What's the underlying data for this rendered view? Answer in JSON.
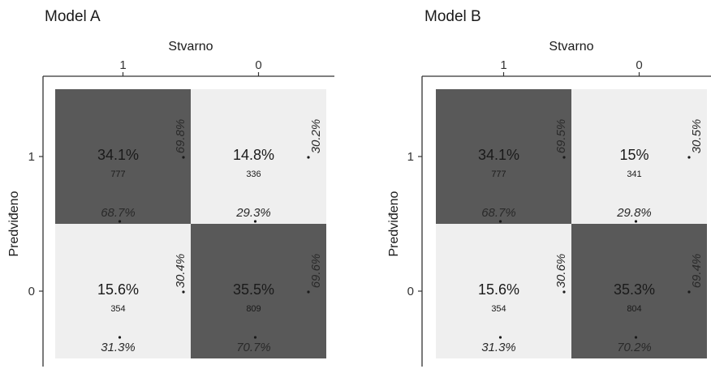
{
  "colors": {
    "dark": "#595959",
    "light": "#efefef",
    "text": "#1a1a1a",
    "axis": "#333333"
  },
  "chart_data": [
    {
      "type": "heatmap",
      "title": "Model A",
      "xlabel": "Stvarno",
      "ylabel": "Predviđeno",
      "x_categories": [
        "1",
        "0"
      ],
      "y_categories": [
        "1",
        "0"
      ],
      "cells": [
        {
          "row": "1",
          "col": "1",
          "percent": "34.1%",
          "count": "777",
          "shade": "dark",
          "col_share": "68.7%",
          "row_share": "69.8%"
        },
        {
          "row": "1",
          "col": "0",
          "percent": "14.8%",
          "count": "336",
          "shade": "light",
          "col_share": "29.3%",
          "row_share": "30.2%"
        },
        {
          "row": "0",
          "col": "1",
          "percent": "15.6%",
          "count": "354",
          "shade": "light",
          "col_share": "31.3%",
          "row_share": "30.4%"
        },
        {
          "row": "0",
          "col": "0",
          "percent": "35.5%",
          "count": "809",
          "shade": "dark",
          "col_share": "70.7%",
          "row_share": "69.6%"
        }
      ]
    },
    {
      "type": "heatmap",
      "title": "Model B",
      "xlabel": "Stvarno",
      "ylabel": "Predviđeno",
      "x_categories": [
        "1",
        "0"
      ],
      "y_categories": [
        "1",
        "0"
      ],
      "cells": [
        {
          "row": "1",
          "col": "1",
          "percent": "34.1%",
          "count": "777",
          "shade": "dark",
          "col_share": "68.7%",
          "row_share": "69.5%"
        },
        {
          "row": "1",
          "col": "0",
          "percent": "15%",
          "count": "341",
          "shade": "light",
          "col_share": "29.8%",
          "row_share": "30.5%"
        },
        {
          "row": "0",
          "col": "1",
          "percent": "15.6%",
          "count": "354",
          "shade": "light",
          "col_share": "31.3%",
          "row_share": "30.6%"
        },
        {
          "row": "0",
          "col": "0",
          "percent": "35.3%",
          "count": "804",
          "shade": "dark",
          "col_share": "70.2%",
          "row_share": "69.4%"
        }
      ]
    }
  ]
}
